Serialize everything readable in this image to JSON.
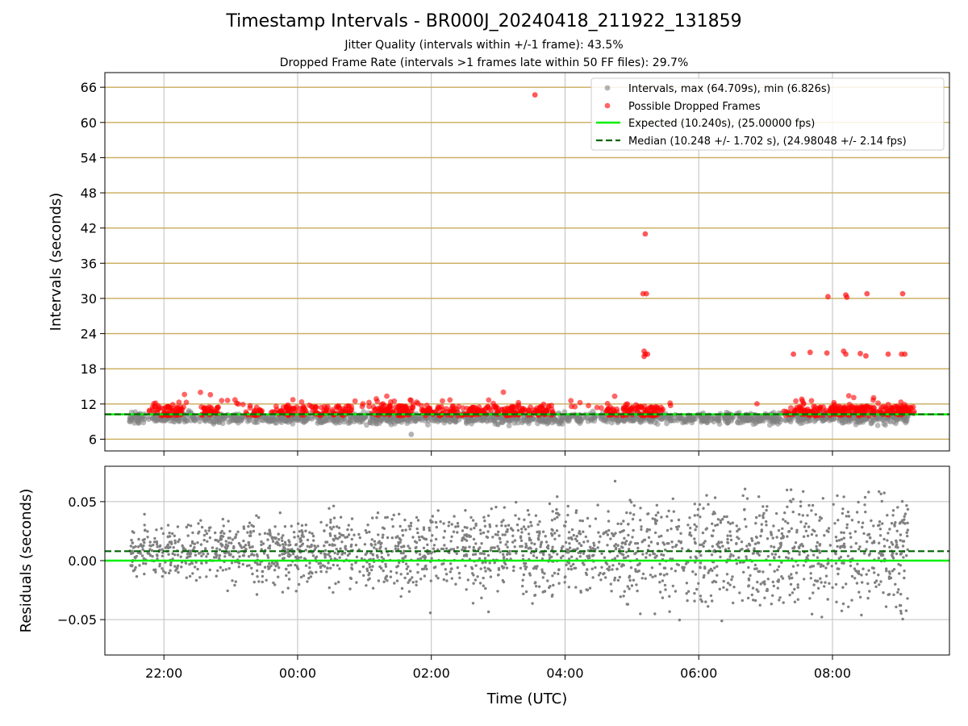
{
  "title": "Timestamp Intervals - BR000J_20240418_211922_131859",
  "subtitle1": "Jitter Quality (intervals within +/-1 frame): 43.5%",
  "subtitle2": "Dropped Frame Rate (intervals >1 frames late within 50 FF files): 29.7%",
  "colors": {
    "intervals": "#808080",
    "dropped": "#ff0000",
    "expected": "#00ee00",
    "median": "#006400",
    "hgrid": "#c8ab5a",
    "vgrid": "#bfbfbf"
  },
  "chart_data": [
    {
      "type": "scatter",
      "panel": "top",
      "ylabel": "Intervals (seconds)",
      "ylim": [
        4.0,
        68.5
      ],
      "yticks": [
        6,
        12,
        18,
        24,
        30,
        36,
        42,
        48,
        54,
        60,
        66
      ],
      "ytick_labels": [
        "6",
        "12",
        "18",
        "24",
        "30",
        "36",
        "42",
        "48",
        "54",
        "60",
        "66"
      ],
      "xlim": [
        "21:07",
        "09:45"
      ],
      "grid": true,
      "legend": "top-right",
      "expected": 10.24,
      "median": 10.248,
      "legend_entries": [
        "Intervals, max (64.709s), min (6.826s)",
        "Possible Dropped Frames",
        "Expected (10.240s), (25.00000 fps)",
        "Median (10.248 +/- 1.702 s), (24.98048 +/- 2.14 fps)"
      ],
      "series": [
        {
          "name": "Intervals, max (64.709s), min (6.826s)",
          "time_range": [
            "21:29",
            "09:08"
          ],
          "typical_range": [
            7.5,
            11.5
          ],
          "max": 64.709,
          "min": 6.826
        },
        {
          "name": "Possible Dropped Frames",
          "points": [
            [
              "03:33",
              64.7
            ],
            [
              "05:12",
              41.0
            ],
            [
              "05:10",
              30.8
            ],
            [
              "05:13",
              30.8
            ],
            [
              "05:11",
              21.0
            ],
            [
              "05:11",
              20.1
            ],
            [
              "05:12",
              20.5
            ],
            [
              "05:14",
              20.5
            ],
            [
              "07:25",
              20.5
            ],
            [
              "07:40",
              20.8
            ],
            [
              "07:55",
              20.7
            ],
            [
              "08:10",
              21.0
            ],
            [
              "08:12",
              20.5
            ],
            [
              "08:25",
              20.6
            ],
            [
              "08:30",
              20.2
            ],
            [
              "08:50",
              20.5
            ],
            [
              "09:02",
              20.5
            ],
            [
              "09:05",
              20.5
            ],
            [
              "07:56",
              30.3
            ],
            [
              "08:12",
              30.6
            ],
            [
              "08:13",
              30.2
            ],
            [
              "08:31",
              30.8
            ],
            [
              "09:03",
              30.8
            ]
          ],
          "clusters": [
            "21:55",
            "22:10",
            "22:40",
            "23:20",
            "23:45",
            "00:00",
            "00:20",
            "00:40",
            "01:15",
            "01:30",
            "01:35",
            "02:00",
            "02:15",
            "02:35",
            "02:45",
            "03:05",
            "03:15",
            "03:35",
            "03:40",
            "04:45",
            "05:00",
            "05:15",
            "05:20",
            "07:25",
            "07:40",
            "07:55",
            "08:05",
            "08:10",
            "08:20",
            "08:30",
            "08:45",
            "09:00",
            "09:05"
          ]
        }
      ]
    },
    {
      "type": "scatter",
      "panel": "bottom",
      "xlabel": "Time (UTC)",
      "ylabel": "Residuals (seconds)",
      "ylim": [
        -0.08,
        0.08
      ],
      "yticks": [
        -0.05,
        0.0,
        0.05
      ],
      "ytick_labels": [
        "−0.05",
        "0.00",
        "0.05"
      ],
      "xticks": [
        "22:00",
        "00:00",
        "02:00",
        "04:00",
        "06:00",
        "08:00"
      ],
      "xlim": [
        "21:07",
        "09:45"
      ],
      "grid": true,
      "expected_residual": 0.0,
      "median_residual": 0.008,
      "series": [
        {
          "name": "residuals",
          "time_range": [
            "21:29",
            "09:08"
          ],
          "spread": [
            -0.08,
            0.08
          ]
        }
      ]
    }
  ]
}
